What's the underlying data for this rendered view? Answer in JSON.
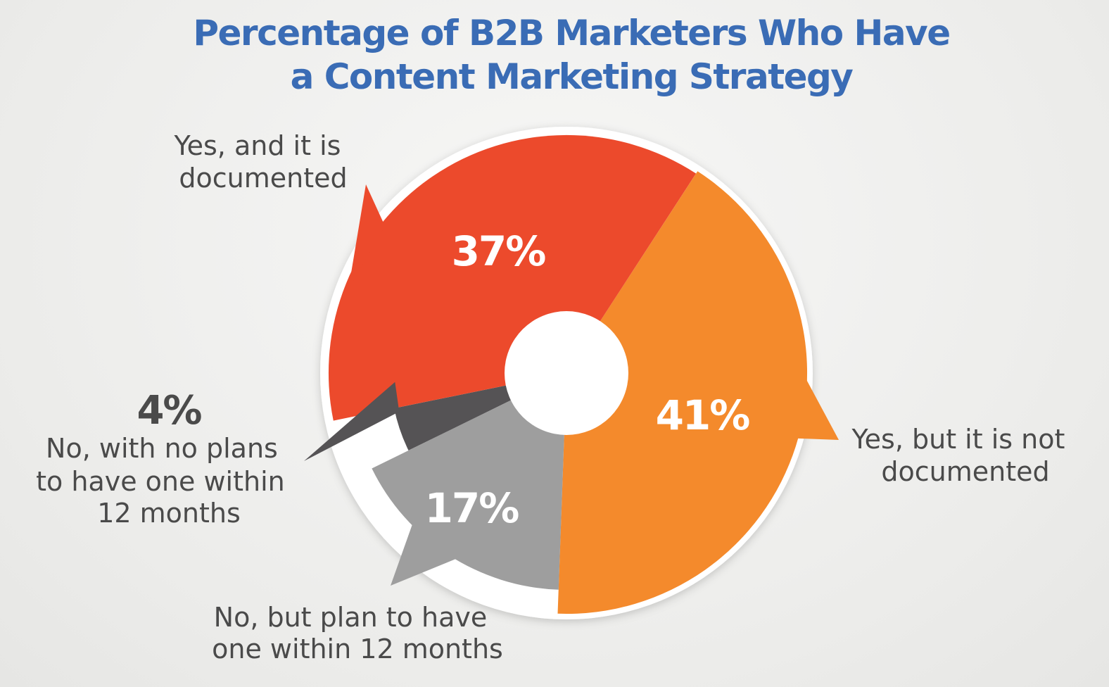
{
  "colors": {
    "background": "#ececea",
    "title": "#3a6cb5",
    "yes_documented": "#ec4a2c",
    "yes_not_documented": "#f48a2c",
    "no_plan_12_months": "#9e9e9e",
    "no_no_plans": "#555355",
    "label_text": "#4a4a4a",
    "value_text_on_slice": "#ffffff"
  },
  "chart_data": {
    "type": "pie",
    "style": "donut",
    "title": [
      "Percentage of B2B Marketers Who Have",
      "a Content Marketing Strategy"
    ],
    "unit": "%",
    "slices": [
      {
        "key": "yes_documented",
        "label": [
          "Yes, and it is",
          "documented"
        ],
        "value": 37,
        "display": "37%",
        "color": "#ec4a2c"
      },
      {
        "key": "yes_not_documented",
        "label": [
          "Yes, but it is not",
          "documented"
        ],
        "value": 41,
        "display": "41%",
        "color": "#f48a2c"
      },
      {
        "key": "no_plan_12_months",
        "label": [
          "No, but plan to have",
          "one within 12 months"
        ],
        "value": 17,
        "display": "17%",
        "color": "#9e9e9e"
      },
      {
        "key": "no_no_plans",
        "label": [
          "No, with no plans",
          "to have one within",
          "12 months"
        ],
        "value": 4,
        "display": "4%",
        "color": "#555355"
      }
    ]
  }
}
